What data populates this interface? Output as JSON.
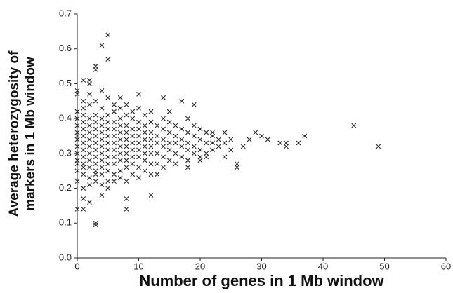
{
  "chart_data": {
    "type": "scatter",
    "xlabel": "Number of genes in 1 Mb window",
    "ylabel": "Average heterozygosity of markers in 1 Mb window",
    "color": "#222222",
    "xlim": [
      0,
      60
    ],
    "xticks": [
      0,
      10,
      20,
      30,
      40,
      50,
      60
    ],
    "ylim": [
      0,
      0.7
    ],
    "yticks": [
      {
        "value": 0,
        "label": "0.0"
      },
      0.1,
      0.2,
      0.3,
      0.4,
      0.5,
      0.6,
      0.7
    ],
    "x": [
      0,
      0,
      0,
      0,
      0,
      0,
      0,
      0,
      0,
      0,
      0,
      0,
      1,
      1,
      1,
      1,
      1,
      1,
      1,
      1,
      1,
      1,
      1,
      1,
      1,
      2,
      2,
      2,
      2,
      2,
      2,
      2,
      2,
      2,
      2,
      2,
      2,
      3,
      3,
      3,
      3,
      3,
      3,
      3,
      3,
      3,
      3,
      3,
      3,
      4,
      4,
      4,
      4,
      4,
      4,
      4,
      4,
      4,
      4,
      4,
      4,
      5,
      5,
      5,
      5,
      5,
      5,
      5,
      5,
      5,
      5,
      5,
      5,
      6,
      6,
      6,
      6,
      6,
      6,
      6,
      6,
      6,
      6,
      6,
      7,
      7,
      7,
      7,
      7,
      7,
      7,
      7,
      7,
      7,
      8,
      8,
      8,
      8,
      8,
      8,
      8,
      8,
      8,
      8,
      9,
      9,
      9,
      9,
      9,
      9,
      9,
      9,
      9,
      10,
      10,
      10,
      10,
      10,
      10,
      10,
      10,
      10,
      11,
      11,
      11,
      11,
      11,
      11,
      11,
      11,
      12,
      12,
      12,
      12,
      12,
      12,
      12,
      12,
      13,
      13,
      13,
      13,
      13,
      14,
      14,
      14,
      14,
      14,
      14,
      15,
      15,
      15,
      15,
      15,
      16,
      16,
      16,
      16,
      16,
      17,
      17,
      17,
      17,
      18,
      18,
      18,
      18,
      18,
      19,
      19,
      19,
      19,
      20,
      20,
      20,
      20,
      21,
      21,
      21,
      22,
      22,
      22,
      23,
      23,
      24,
      24,
      5,
      4,
      5,
      3,
      3,
      0,
      0,
      1,
      2,
      2,
      3,
      3,
      1,
      0,
      8,
      8,
      1,
      2,
      4,
      12,
      45,
      49,
      37,
      36,
      34,
      34,
      33,
      30,
      29,
      31,
      26,
      26,
      27,
      28,
      22,
      24,
      25,
      25,
      20,
      21,
      19,
      17,
      14,
      10,
      7,
      13,
      18,
      15
    ],
    "values": [
      0.22,
      0.25,
      0.28,
      0.3,
      0.32,
      0.34,
      0.36,
      0.38,
      0.4,
      0.42,
      0.27,
      0.35,
      0.2,
      0.24,
      0.27,
      0.29,
      0.31,
      0.33,
      0.35,
      0.37,
      0.39,
      0.41,
      0.43,
      0.26,
      0.45,
      0.21,
      0.23,
      0.26,
      0.28,
      0.3,
      0.32,
      0.34,
      0.36,
      0.38,
      0.4,
      0.44,
      0.47,
      0.22,
      0.25,
      0.27,
      0.29,
      0.31,
      0.33,
      0.35,
      0.37,
      0.39,
      0.41,
      0.45,
      0.24,
      0.21,
      0.24,
      0.26,
      0.28,
      0.3,
      0.32,
      0.34,
      0.36,
      0.38,
      0.4,
      0.43,
      0.48,
      0.22,
      0.25,
      0.27,
      0.29,
      0.31,
      0.33,
      0.35,
      0.37,
      0.39,
      0.41,
      0.46,
      0.2,
      0.22,
      0.24,
      0.27,
      0.29,
      0.31,
      0.33,
      0.35,
      0.37,
      0.39,
      0.42,
      0.44,
      0.23,
      0.25,
      0.28,
      0.3,
      0.32,
      0.34,
      0.36,
      0.38,
      0.4,
      0.43,
      0.22,
      0.26,
      0.28,
      0.3,
      0.32,
      0.34,
      0.36,
      0.38,
      0.41,
      0.44,
      0.24,
      0.27,
      0.29,
      0.31,
      0.33,
      0.35,
      0.37,
      0.4,
      0.42,
      0.23,
      0.26,
      0.29,
      0.31,
      0.33,
      0.35,
      0.37,
      0.39,
      0.43,
      0.25,
      0.28,
      0.3,
      0.32,
      0.34,
      0.36,
      0.38,
      0.41,
      0.24,
      0.27,
      0.3,
      0.32,
      0.34,
      0.36,
      0.39,
      0.42,
      0.27,
      0.3,
      0.33,
      0.35,
      0.38,
      0.26,
      0.29,
      0.32,
      0.34,
      0.37,
      0.4,
      0.28,
      0.31,
      0.33,
      0.36,
      0.39,
      0.27,
      0.3,
      0.33,
      0.35,
      0.38,
      0.29,
      0.32,
      0.34,
      0.37,
      0.28,
      0.31,
      0.33,
      0.36,
      0.4,
      0.3,
      0.32,
      0.35,
      0.38,
      0.29,
      0.31,
      0.34,
      0.37,
      0.3,
      0.33,
      0.36,
      0.31,
      0.33,
      0.35,
      0.32,
      0.34,
      0.29,
      0.33,
      0.64,
      0.61,
      0.57,
      0.55,
      0.54,
      0.48,
      0.47,
      0.51,
      0.51,
      0.5,
      0.1,
      0.095,
      0.14,
      0.14,
      0.14,
      0.17,
      0.17,
      0.16,
      0.18,
      0.18,
      0.38,
      0.32,
      0.35,
      0.33,
      0.32,
      0.33,
      0.33,
      0.35,
      0.36,
      0.34,
      0.26,
      0.27,
      0.32,
      0.34,
      0.36,
      0.36,
      0.34,
      0.31,
      0.28,
      0.29,
      0.44,
      0.45,
      0.46,
      0.47,
      0.46,
      0.24,
      0.26,
      0.42
    ]
  }
}
